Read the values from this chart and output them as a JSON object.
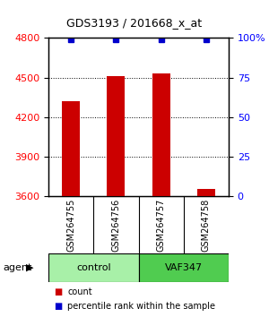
{
  "title": "GDS3193 / 201668_x_at",
  "samples": [
    "GSM264755",
    "GSM264756",
    "GSM264757",
    "GSM264758"
  ],
  "counts": [
    4320,
    4510,
    4530,
    3660
  ],
  "percentile_ranks": [
    99,
    99,
    99,
    99
  ],
  "ylim_left": [
    3600,
    4800
  ],
  "yticks_left": [
    3600,
    3900,
    4200,
    4500,
    4800
  ],
  "yticks_right": [
    0,
    25,
    50,
    75,
    100
  ],
  "ylim_right": [
    0,
    100
  ],
  "bar_color": "#cc0000",
  "dot_color": "#0000cc",
  "groups": [
    {
      "label": "control",
      "samples": [
        0,
        1
      ],
      "color": "#90ee90"
    },
    {
      "label": "VAF347",
      "samples": [
        2,
        3
      ],
      "color": "#00cc00"
    }
  ],
  "group_label": "agent",
  "legend_count_label": "count",
  "legend_pct_label": "percentile rank within the sample",
  "bar_width": 0.4,
  "background_color": "#ffffff",
  "plot_bg_color": "#ffffff"
}
